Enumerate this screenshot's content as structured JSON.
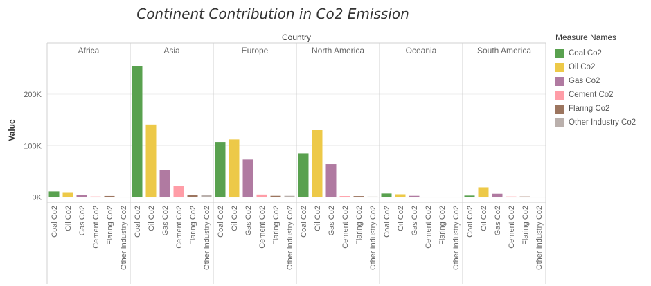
{
  "chart_data": {
    "type": "bar",
    "title": "Continent Contribution in Co2 Emission",
    "column_header": "Country",
    "ylabel": "Value",
    "ylim": [
      -10000,
      270000
    ],
    "yticks": [
      0,
      100000,
      200000
    ],
    "ytick_labels": [
      "0K",
      "100K",
      "200K"
    ],
    "grid": true,
    "legend_position": "right",
    "legend_title": "Measure Names",
    "measures": [
      "Coal Co2",
      "Oil Co2",
      "Gas Co2",
      "Cement Co2",
      "Flaring Co2",
      "Other Industry Co2"
    ],
    "colors": [
      "#59a14f",
      "#edc948",
      "#b07aa1",
      "#ff9da7",
      "#9c755f",
      "#bab0ac"
    ],
    "panels": [
      {
        "name": "Africa",
        "values": [
          11000,
          9500,
          4500,
          1200,
          2200,
          100
        ]
      },
      {
        "name": "Asia",
        "values": [
          255000,
          141000,
          52000,
          21000,
          4500,
          4800
        ]
      },
      {
        "name": "Europe",
        "values": [
          107000,
          112000,
          73000,
          5000,
          2500,
          2500
        ]
      },
      {
        "name": "North America",
        "values": [
          85000,
          130000,
          64000,
          2000,
          2000,
          1000
        ]
      },
      {
        "name": "Oceania",
        "values": [
          7000,
          5500,
          2500,
          400,
          200,
          100
        ]
      },
      {
        "name": "South America",
        "values": [
          3000,
          19000,
          6500,
          1200,
          1200,
          200
        ]
      }
    ]
  }
}
